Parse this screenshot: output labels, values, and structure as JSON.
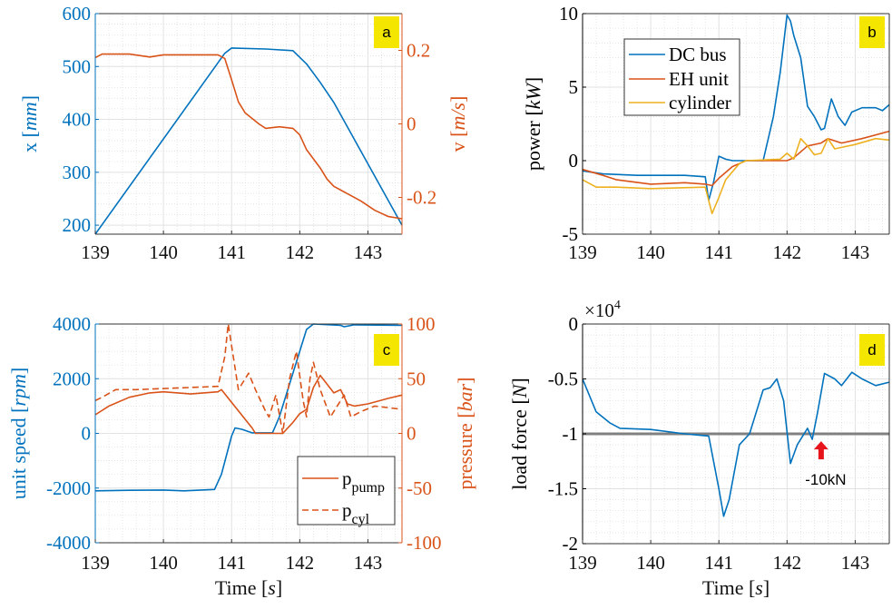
{
  "colors": {
    "blue": "#0072BD",
    "orange": "#D95319",
    "yellow": "#EDB120",
    "label_box": "#F5E600",
    "reference": "#808080",
    "arrow": "#E8141B"
  },
  "chart_data": [
    {
      "panel_label": "a",
      "type": "line",
      "xlim": [
        139,
        143.5
      ],
      "xticks": [
        139,
        140,
        141,
        142,
        143
      ],
      "ylim": [
        183,
        600
      ],
      "yticks": [
        200,
        300,
        400,
        500,
        600
      ],
      "ylabel": {
        "text": "x ",
        "unit": "mm"
      },
      "y2lim": [
        -0.3,
        0.3
      ],
      "y2ticks": [
        -0.2,
        0,
        0.2
      ],
      "y2label": {
        "text": "v ",
        "unit": "m/s"
      },
      "grid": true,
      "series": [
        {
          "axis": "left",
          "color": "#0072BD",
          "style": "solid",
          "points": [
            [
              139,
              183
            ],
            [
              140.9,
              525
            ],
            [
              141,
              535
            ],
            [
              141.5,
              533
            ],
            [
              141.9,
              530
            ],
            [
              142.1,
              505
            ],
            [
              142.3,
              470
            ],
            [
              142.5,
              432
            ],
            [
              143.5,
              200
            ]
          ]
        },
        {
          "axis": "right",
          "color": "#D95319",
          "style": "solid",
          "points": [
            [
              139,
              0.18
            ],
            [
              139.1,
              0.19
            ],
            [
              139.5,
              0.19
            ],
            [
              139.8,
              0.182
            ],
            [
              140,
              0.188
            ],
            [
              140.8,
              0.188
            ],
            [
              140.9,
              0.178
            ],
            [
              141,
              0.12
            ],
            [
              141.1,
              0.06
            ],
            [
              141.2,
              0.03
            ],
            [
              141.4,
              0.0
            ],
            [
              141.5,
              -0.012
            ],
            [
              141.7,
              -0.008
            ],
            [
              141.9,
              -0.012
            ],
            [
              142,
              -0.03
            ],
            [
              142.1,
              -0.07
            ],
            [
              142.3,
              -0.12
            ],
            [
              142.4,
              -0.15
            ],
            [
              142.5,
              -0.17
            ],
            [
              142.7,
              -0.19
            ],
            [
              142.9,
              -0.21
            ],
            [
              143.1,
              -0.235
            ],
            [
              143.3,
              -0.252
            ],
            [
              143.5,
              -0.258
            ]
          ]
        }
      ]
    },
    {
      "panel_label": "b",
      "type": "line",
      "xlim": [
        139,
        143.5
      ],
      "xticks": [
        139,
        140,
        141,
        142,
        143
      ],
      "ylim": [
        -5,
        10
      ],
      "yticks": [
        -5,
        0,
        5,
        10
      ],
      "ylabel": {
        "text": "power ",
        "unit": "kW"
      },
      "grid": true,
      "legend_position": "top-left",
      "series": [
        {
          "name": "DC bus",
          "axis": "left",
          "color": "#0072BD",
          "style": "solid",
          "points": [
            [
              139,
              -0.7
            ],
            [
              139.3,
              -0.9
            ],
            [
              139.8,
              -1
            ],
            [
              140.5,
              -1
            ],
            [
              140.8,
              -1.1
            ],
            [
              140.85,
              -2.7
            ],
            [
              140.92,
              -1.5
            ],
            [
              141,
              0.3
            ],
            [
              141.1,
              0.1
            ],
            [
              141.2,
              0
            ],
            [
              141.65,
              0
            ],
            [
              141.8,
              3
            ],
            [
              141.9,
              6
            ],
            [
              142,
              9.9
            ],
            [
              142.05,
              9.5
            ],
            [
              142.1,
              8.5
            ],
            [
              142.2,
              7
            ],
            [
              142.3,
              3.7
            ],
            [
              142.4,
              3
            ],
            [
              142.5,
              2.1
            ],
            [
              142.55,
              2.2
            ],
            [
              142.65,
              4.2
            ],
            [
              142.75,
              3
            ],
            [
              142.85,
              2.4
            ],
            [
              142.95,
              3.3
            ],
            [
              143.1,
              3.6
            ],
            [
              143.3,
              3.6
            ],
            [
              143.4,
              3.4
            ],
            [
              143.5,
              3.8
            ]
          ]
        },
        {
          "name": "EH unit",
          "axis": "left",
          "color": "#D95319",
          "style": "solid",
          "points": [
            [
              139,
              -0.6
            ],
            [
              139.3,
              -1.0
            ],
            [
              139.5,
              -1.3
            ],
            [
              140,
              -1.6
            ],
            [
              140.5,
              -1.5
            ],
            [
              140.8,
              -1.6
            ],
            [
              140.9,
              -1.7
            ],
            [
              141,
              -1.2
            ],
            [
              141.2,
              -0.4
            ],
            [
              141.4,
              0
            ],
            [
              142,
              0
            ],
            [
              142.1,
              0.2
            ],
            [
              142.3,
              1.0
            ],
            [
              142.5,
              1.2
            ],
            [
              142.6,
              1.5
            ],
            [
              142.8,
              1.2
            ],
            [
              143.1,
              1.5
            ],
            [
              143.5,
              2.0
            ]
          ]
        },
        {
          "name": "cylinder",
          "axis": "left",
          "color": "#EDB120",
          "style": "solid",
          "points": [
            [
              139,
              -1.3
            ],
            [
              139.2,
              -1.8
            ],
            [
              139.5,
              -1.8
            ],
            [
              140,
              -1.9
            ],
            [
              140.8,
              -1.8
            ],
            [
              140.9,
              -3.6
            ],
            [
              141,
              -2.5
            ],
            [
              141.1,
              -1.3
            ],
            [
              141.3,
              -0.2
            ],
            [
              141.4,
              0
            ],
            [
              141.9,
              0.1
            ],
            [
              142,
              0.5
            ],
            [
              142.1,
              0.1
            ],
            [
              142.2,
              1.5
            ],
            [
              142.3,
              1.0
            ],
            [
              142.4,
              0.4
            ],
            [
              142.5,
              0.5
            ],
            [
              142.6,
              1.5
            ],
            [
              142.7,
              0.8
            ],
            [
              142.8,
              0.9
            ],
            [
              143,
              1.1
            ],
            [
              143.3,
              1.5
            ],
            [
              143.5,
              1.4
            ]
          ]
        }
      ]
    },
    {
      "panel_label": "c",
      "type": "line",
      "xlim": [
        139,
        143.5
      ],
      "xticks": [
        139,
        140,
        141,
        142,
        143
      ],
      "xlabel": {
        "text": "Time ",
        "unit": "s"
      },
      "ylim": [
        -4000,
        4000
      ],
      "yticks": [
        -4000,
        -2000,
        0,
        2000,
        4000
      ],
      "ylabel": {
        "text": "unit speed ",
        "unit": "rpm"
      },
      "y2lim": [
        -100,
        100
      ],
      "y2ticks": [
        -100,
        -50,
        0,
        50,
        100
      ],
      "y2label": {
        "text": "pressure ",
        "unit": "bar"
      },
      "grid": true,
      "legend_position": "bottom-right",
      "series": [
        {
          "axis": "left",
          "color": "#0072BD",
          "style": "solid",
          "points": [
            [
              139,
              -2100
            ],
            [
              139.5,
              -2080
            ],
            [
              140,
              -2070
            ],
            [
              140.3,
              -2100
            ],
            [
              140.75,
              -2050
            ],
            [
              140.85,
              -1500
            ],
            [
              141,
              -100
            ],
            [
              141.05,
              200
            ],
            [
              141.15,
              150
            ],
            [
              141.3,
              20
            ],
            [
              141.6,
              20
            ],
            [
              141.7,
              600
            ],
            [
              141.9,
              2200
            ],
            [
              142.1,
              3800
            ],
            [
              142.2,
              4000
            ],
            [
              142.6,
              3950
            ],
            [
              142.65,
              3900
            ],
            [
              142.8,
              3970
            ],
            [
              143.5,
              3950
            ]
          ]
        },
        {
          "name": "p",
          "sub": "pump",
          "axis": "right",
          "color": "#D95319",
          "style": "solid",
          "points": [
            [
              139,
              17
            ],
            [
              139.2,
              25
            ],
            [
              139.5,
              33
            ],
            [
              139.8,
              37
            ],
            [
              140,
              38
            ],
            [
              140.4,
              36
            ],
            [
              140.8,
              38
            ],
            [
              140.85,
              40
            ],
            [
              141.3,
              5
            ],
            [
              141.35,
              0
            ],
            [
              141.75,
              0
            ],
            [
              141.9,
              10
            ],
            [
              142,
              18
            ],
            [
              142.1,
              22
            ],
            [
              142.2,
              42
            ],
            [
              142.3,
              53
            ],
            [
              142.5,
              37
            ],
            [
              142.6,
              40
            ],
            [
              142.7,
              27
            ],
            [
              142.8,
              25
            ],
            [
              143,
              27
            ],
            [
              143.3,
              32
            ],
            [
              143.5,
              35
            ]
          ]
        },
        {
          "name": "p",
          "sub": "cyl",
          "axis": "right",
          "color": "#D95319",
          "style": "dashed",
          "points": [
            [
              139,
              30
            ],
            [
              139.1,
              33
            ],
            [
              139.3,
              40
            ],
            [
              139.6,
              40
            ],
            [
              140.8,
              43
            ],
            [
              140.9,
              70
            ],
            [
              140.95,
              100
            ],
            [
              141.05,
              60
            ],
            [
              141.1,
              40
            ],
            [
              141.25,
              55
            ],
            [
              141.35,
              40
            ],
            [
              141.5,
              20
            ],
            [
              141.55,
              15
            ],
            [
              141.65,
              35
            ],
            [
              141.75,
              0
            ],
            [
              141.85,
              50
            ],
            [
              141.95,
              75
            ],
            [
              142.05,
              30
            ],
            [
              142.1,
              15
            ],
            [
              142.15,
              50
            ],
            [
              142.2,
              65
            ],
            [
              142.3,
              40
            ],
            [
              142.45,
              15
            ],
            [
              142.55,
              25
            ],
            [
              142.65,
              35
            ],
            [
              142.75,
              15
            ],
            [
              142.9,
              20
            ],
            [
              143.1,
              25
            ],
            [
              143.5,
              22
            ]
          ]
        }
      ]
    },
    {
      "panel_label": "d",
      "type": "line",
      "xlim": [
        139,
        143.5
      ],
      "xticks": [
        139,
        140,
        141,
        142,
        143
      ],
      "xlabel": {
        "text": "Time ",
        "unit": "s"
      },
      "ylim": [
        -2,
        0
      ],
      "yticks": [
        -2,
        -1.5,
        -1,
        -0.5,
        0
      ],
      "ylabel": {
        "text": "load force ",
        "unit": "N"
      },
      "y_multiplier": {
        "base": "×10",
        "exp": "4"
      },
      "grid": true,
      "reference_line": {
        "y": -1,
        "color": "#808080"
      },
      "annotation": {
        "text": "-10kN",
        "x": 142.5,
        "y": -1.1,
        "arrow": "up",
        "color": "#E8141B"
      },
      "series": [
        {
          "axis": "left",
          "color": "#0072BD",
          "style": "solid",
          "points": [
            [
              139,
              -0.5
            ],
            [
              139.2,
              -0.8
            ],
            [
              139.4,
              -0.9
            ],
            [
              139.55,
              -0.95
            ],
            [
              140,
              -0.96
            ],
            [
              140.5,
              -1.0
            ],
            [
              140.85,
              -1.02
            ],
            [
              141,
              -1.5
            ],
            [
              141.07,
              -1.75
            ],
            [
              141.15,
              -1.6
            ],
            [
              141.3,
              -1.1
            ],
            [
              141.45,
              -1.0
            ],
            [
              141.55,
              -0.8
            ],
            [
              141.65,
              -0.6
            ],
            [
              141.75,
              -0.58
            ],
            [
              141.85,
              -0.5
            ],
            [
              141.95,
              -0.7
            ],
            [
              142.05,
              -1.27
            ],
            [
              142.15,
              -1.1
            ],
            [
              142.3,
              -0.95
            ],
            [
              142.37,
              -1.05
            ],
            [
              142.45,
              -0.8
            ],
            [
              142.55,
              -0.45
            ],
            [
              142.7,
              -0.5
            ],
            [
              142.8,
              -0.56
            ],
            [
              142.95,
              -0.44
            ],
            [
              143.1,
              -0.5
            ],
            [
              143.3,
              -0.56
            ],
            [
              143.5,
              -0.53
            ]
          ]
        }
      ]
    }
  ]
}
